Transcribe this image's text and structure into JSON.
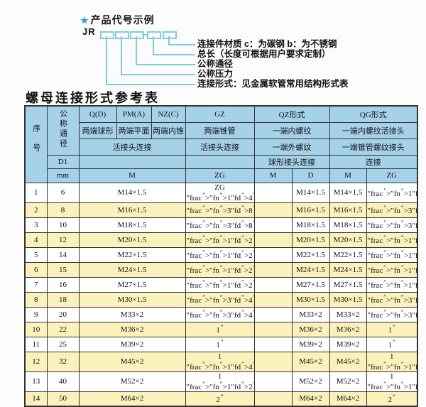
{
  "diagram": {
    "heading_star": "★",
    "heading": "产品代号示例",
    "prefix": "JR",
    "labels": [
      "连接件材质  c：为碳钢  b：为不锈钢",
      "总长（长度可根据用户要求定制）",
      "公称通径",
      "公称压力",
      "连接形式：见金属软管常用结构形式表"
    ],
    "line_color": "#7fcbe0",
    "star_color": "#29a3dc"
  },
  "table": {
    "title": "螺母连接形式参考表",
    "header": {
      "seq": "序号",
      "dn": "公称通径",
      "d1": "D1",
      "mm": "mm",
      "col_q": "Q(D)",
      "col_pm": "PM(A)",
      "col_nz": "NZ(C)",
      "col_gz": "GZ",
      "col_qz": "QZ形式",
      "col_qg": "QG形式",
      "desc_q": "两端球形",
      "desc_pm": "两端平面",
      "desc_nz": "两端内锥",
      "desc_gz": "两端锥管",
      "desc_qz": "一端内螺纹",
      "desc_qg": "一端内螺纹活接头",
      "conn_left": "活接头连接",
      "conn_gz": "活接头连接",
      "conn_qz": "一端外螺纹",
      "conn_qg": "一端锥管螺纹接头",
      "join_qz": "球形接头连接",
      "join_qg": "连接",
      "unit_m": "M",
      "unit_zg": "ZG",
      "sub_qz_m": "M",
      "sub_qz_d": "D",
      "sub_qg_m": "M",
      "sub_qg_zg": "ZG"
    },
    "colors": {
      "header_bg": "#a6d2e9",
      "row_bg": "#ffffff",
      "row_alt_bg": "#fbf2bb",
      "border": "#333333"
    },
    "rows": [
      {
        "seq": "1",
        "dn": "6",
        "m": "M14×1.5",
        "gz": "ZG 1/4\"",
        "qz_m": "",
        "qz_d": "M14×1.5",
        "qg_m": "M14×1.5",
        "qg_zg": "1/4\""
      },
      {
        "seq": "2",
        "dn": "8",
        "m": "M16×1.5",
        "gz": "3/8\"",
        "qz_m": "",
        "qz_d": "M16×1.5",
        "qg_m": "M16×1.5",
        "qg_zg": "3/8\""
      },
      {
        "seq": "3",
        "dn": "10",
        "m": "M18×1.5",
        "gz": "3/8\"",
        "qz_m": "",
        "qz_d": "M18×1.5",
        "qg_m": "M18×1.5",
        "qg_zg": "3/8\""
      },
      {
        "seq": "4",
        "dn": "12",
        "m": "M20×1.5",
        "gz": "1/2\"",
        "qz_m": "",
        "qz_d": "M20×1.5",
        "qg_m": "M20×1.5",
        "qg_zg": "1/2\""
      },
      {
        "seq": "5",
        "dn": "14",
        "m": "M22×1.5",
        "gz": "1/2\"",
        "qz_m": "",
        "qz_d": "M22×1.5",
        "qg_m": "M22×1.5",
        "qg_zg": "1/2\""
      },
      {
        "seq": "6",
        "dn": "15",
        "m": "M24×1.5",
        "gz": "1/2\"",
        "qz_m": "",
        "qz_d": "M24×1.5",
        "qg_m": "M24×1.5",
        "qg_zg": "1/2\""
      },
      {
        "seq": "7",
        "dn": "16",
        "m": "M27×1.5",
        "gz": "1/2\"",
        "qz_m": "",
        "qz_d": "M27×1.5",
        "qg_m": "M27×1.5",
        "qg_zg": "1/2\""
      },
      {
        "seq": "8",
        "dn": "18",
        "m": "M30×1.5",
        "gz": "3/4\"",
        "qz_m": "",
        "qz_d": "M30×1.5",
        "qg_m": "M30×1.5",
        "qg_zg": "3/4\""
      },
      {
        "seq": "9",
        "dn": "20",
        "m": "M33×2",
        "gz": "3/4\"",
        "qz_m": "",
        "qz_d": "M33×2",
        "qg_m": "M33×2",
        "qg_zg": "3/4\""
      },
      {
        "seq": "10",
        "dn": "22",
        "m": "M36×2",
        "gz": "1\"",
        "qz_m": "",
        "qz_d": "M36×2",
        "qg_m": "M36×2",
        "qg_zg": "1\""
      },
      {
        "seq": "11",
        "dn": "25",
        "m": "M39×2",
        "gz": "1\"",
        "qz_m": "",
        "qz_d": "M39×2",
        "qg_m": "M39×2",
        "qg_zg": "1\""
      },
      {
        "seq": "12",
        "dn": "32",
        "m": "M45×2",
        "gz": "1 1/4\"",
        "qz_m": "",
        "qz_d": "M45×2",
        "qg_m": "M45×2",
        "qg_zg": "1 1/4\""
      },
      {
        "seq": "13",
        "dn": "40",
        "m": "M52×2",
        "gz": "1 1/2\"",
        "qz_m": "",
        "qz_d": "M52×2",
        "qg_m": "M52×2",
        "qg_zg": "1 1/2\""
      },
      {
        "seq": "14",
        "dn": "50",
        "m": "M64×2",
        "gz": "2\"",
        "qz_m": "",
        "qz_d": "M64×2",
        "qg_m": "M64×2",
        "qg_zg": "2\""
      }
    ]
  }
}
